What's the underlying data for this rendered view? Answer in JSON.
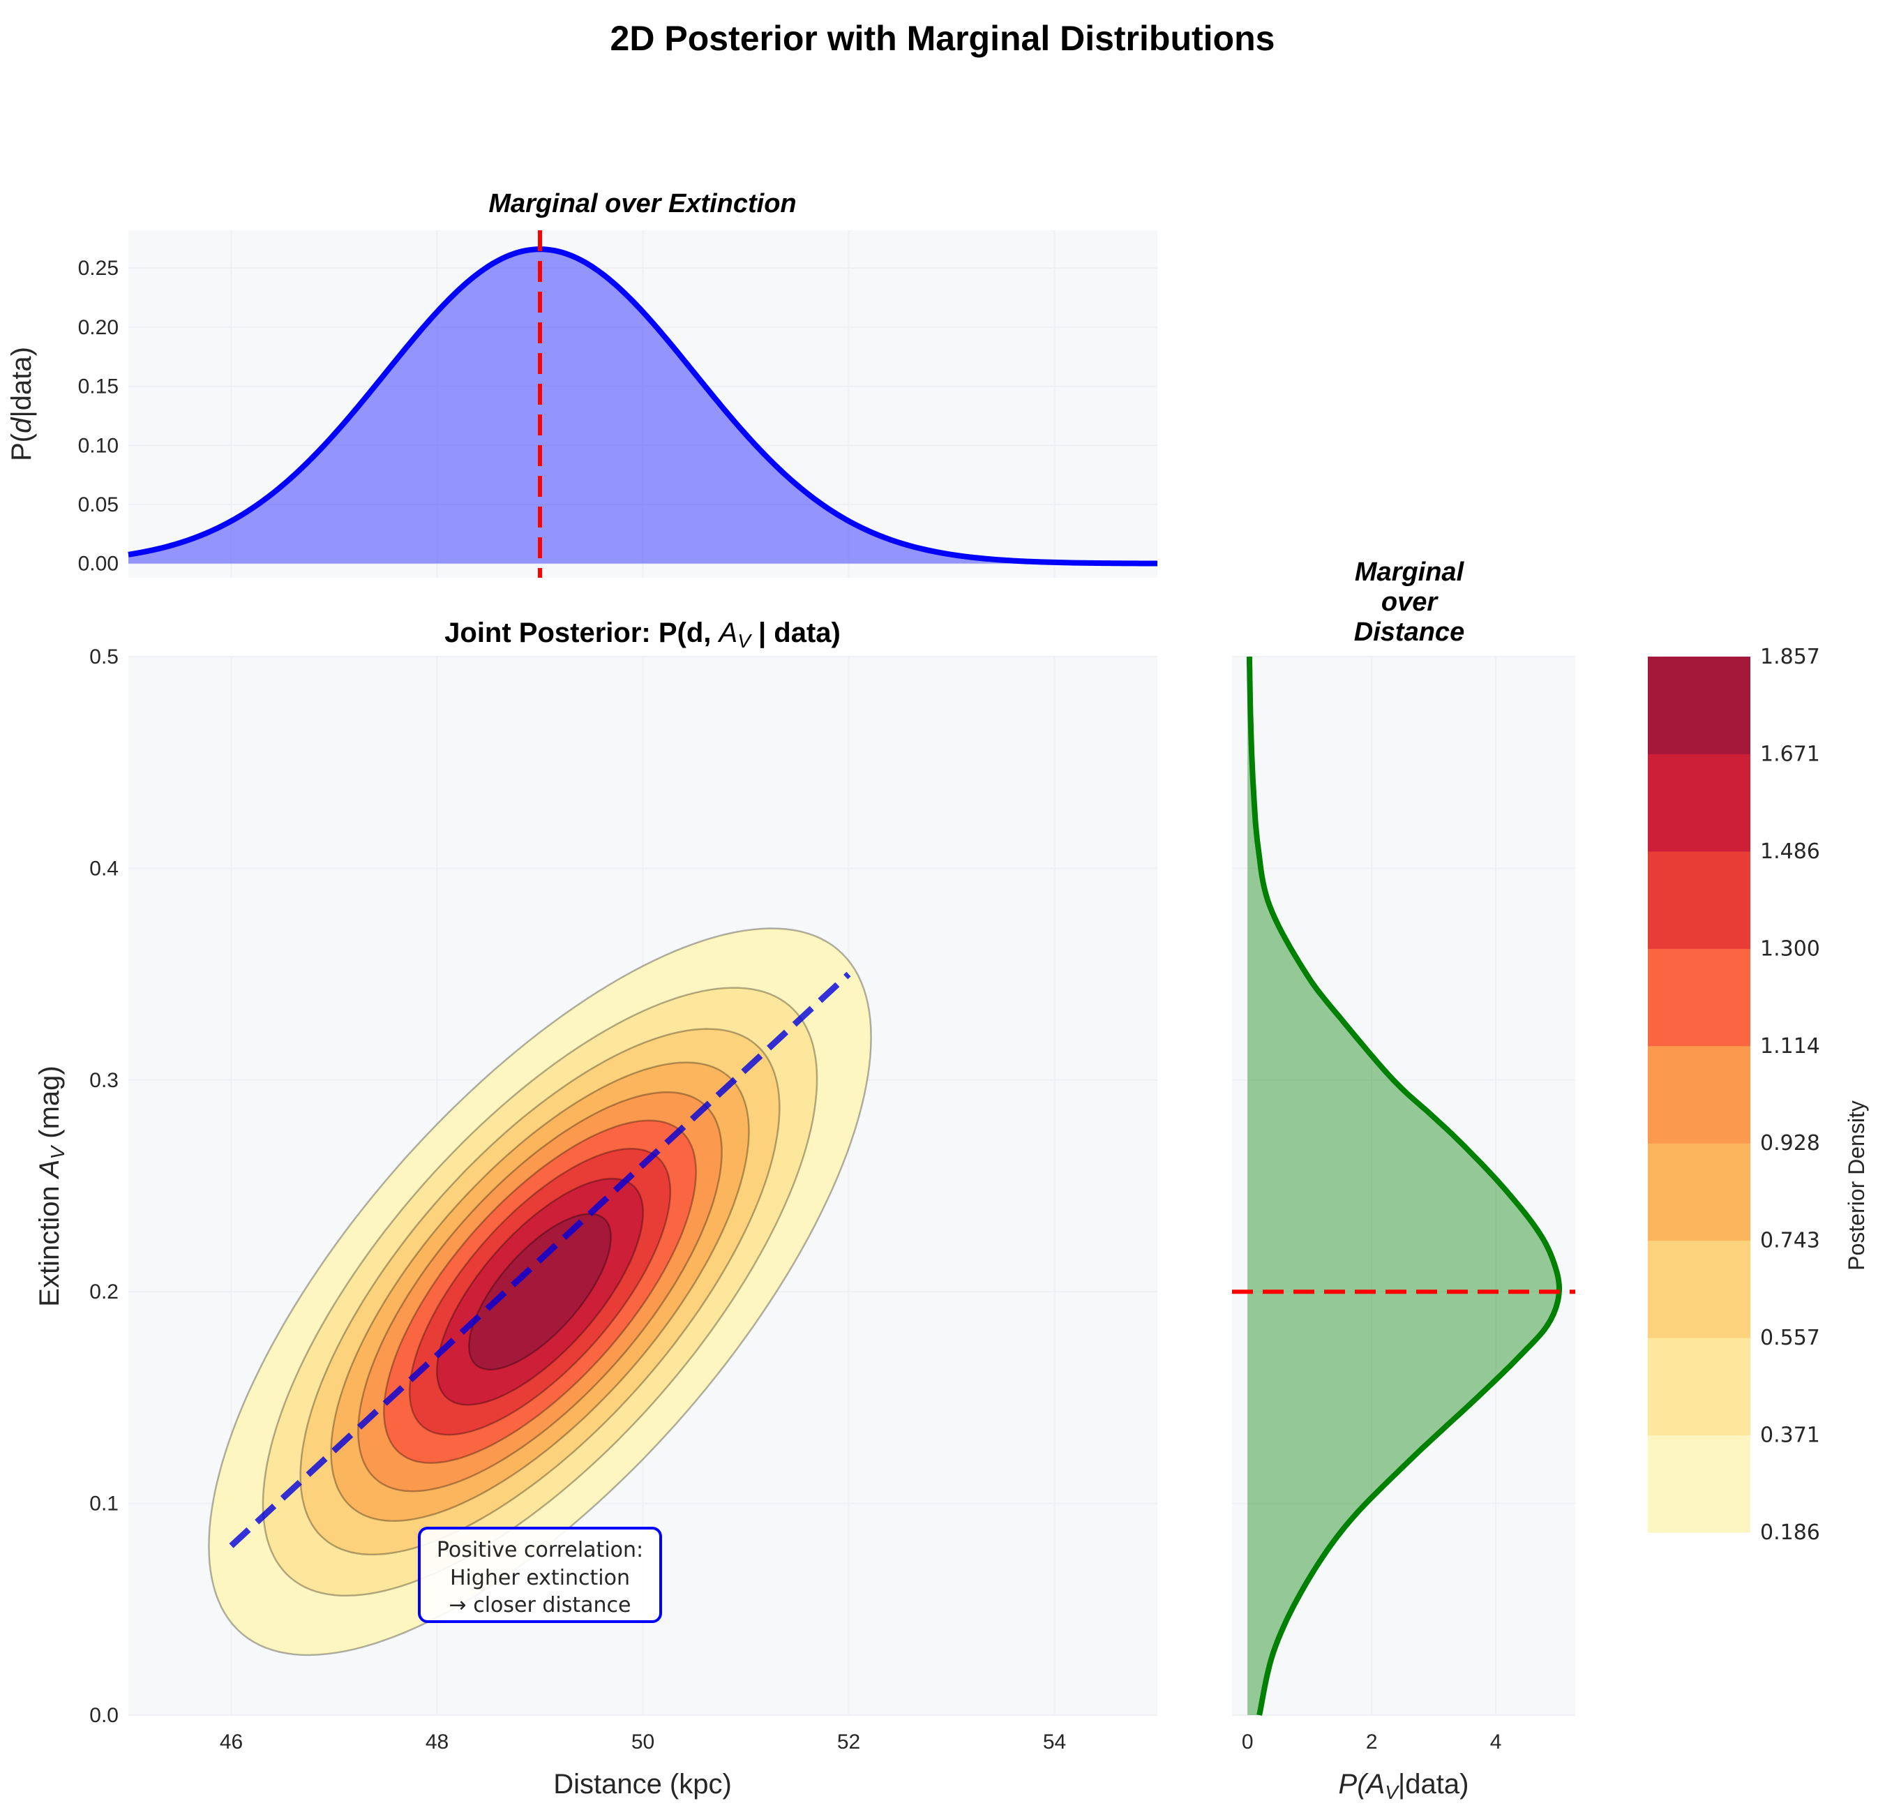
{
  "figure": {
    "suptitle": "2D Posterior with Marginal Distributions"
  },
  "chart_data": [
    {
      "panel": "top-marginal",
      "type": "area",
      "title": "Marginal over Extinction",
      "xlabel": "",
      "ylabel_prefix": "P(",
      "ylabel_var": "d",
      "ylabel_suffix": "|data)",
      "xlim": [
        45,
        55
      ],
      "ylim": [
        -0.012,
        0.282
      ],
      "yticks": [
        0.0,
        0.05,
        0.1,
        0.15,
        0.2,
        0.25
      ],
      "ytick_labels": [
        "0.00",
        "0.05",
        "0.10",
        "0.15",
        "0.20",
        "0.25"
      ],
      "curve": {
        "distribution": "normal",
        "mean": 49,
        "std": 1.5,
        "x_range": [
          45,
          55
        ],
        "color": "#0000ff",
        "fill_color": "#0000ff",
        "fill_alpha": 0.4
      },
      "vline": {
        "x": 49,
        "color": "#ff0000",
        "style": "dashed"
      },
      "grid": true
    },
    {
      "panel": "joint",
      "type": "heatmap",
      "subtype": "filled-contour",
      "title_prefix": "Joint Posterior: P(d, ",
      "title_var": "A",
      "title_sub": "V",
      "title_suffix": " | data)",
      "xlabel": "Distance (kpc)",
      "ylabel_prefix": "Extinction ",
      "ylabel_var": "A",
      "ylabel_sub": "V",
      "ylabel_suffix": " (mag)",
      "xlim": [
        45,
        55
      ],
      "ylim": [
        0.0,
        0.5
      ],
      "xticks": [
        46,
        48,
        50,
        52,
        54
      ],
      "xtick_labels": [
        "46",
        "48",
        "50",
        "52",
        "54"
      ],
      "yticks": [
        0.0,
        0.1,
        0.2,
        0.3,
        0.4,
        0.5
      ],
      "ytick_labels": [
        "0.0",
        "0.1",
        "0.2",
        "0.3",
        "0.4",
        "0.5"
      ],
      "distribution": {
        "type": "bivariate-normal",
        "mean_d": 49,
        "mean_av": 0.2,
        "std_d": 1.5,
        "std_av": 0.08,
        "rho": 0.7
      },
      "levels": [
        0.186,
        0.371,
        0.557,
        0.743,
        0.928,
        1.114,
        1.3,
        1.486,
        1.671,
        1.857
      ],
      "level_colors": [
        "#fff7bc",
        "#fee391",
        "#fed976",
        "#feb24c",
        "#fd8d3c",
        "#fc4e2a",
        "#e31a1c",
        "#bd0026",
        "#800026"
      ],
      "display_colors": [
        "#fef6c1",
        "#fde79d",
        "#fcd37c",
        "#fbb55d",
        "#fb994e",
        "#fa6641",
        "#e83c36",
        "#cd1f38",
        "#a4183a"
      ],
      "correlation_line": {
        "x": [
          46,
          52
        ],
        "y": [
          0.08,
          0.35
        ],
        "color": "#0000dd",
        "style": "dashed"
      },
      "annotation": {
        "lines": [
          "Positive correlation:",
          "Higher extinction",
          "→ closer distance"
        ],
        "x": 49,
        "y": 0.085,
        "border_color": "#0000ff"
      },
      "grid": true
    },
    {
      "panel": "right-marginal",
      "type": "area",
      "orientation": "horizontal",
      "title_lines": [
        "Marginal",
        "over",
        "Distance"
      ],
      "xlabel_prefix": "P(",
      "xlabel_var": "A",
      "xlabel_sub": "V",
      "xlabel_suffix": "|data)",
      "xlim": [
        -0.25,
        5.28
      ],
      "ylim": [
        0.0,
        0.5
      ],
      "xticks": [
        0,
        2,
        4
      ],
      "xtick_labels": [
        "0",
        "2",
        "4"
      ],
      "curve_points": [
        [
          0.0,
          0.19
        ],
        [
          0.03,
          0.42
        ],
        [
          0.06,
          0.9
        ],
        [
          0.09,
          1.6
        ],
        [
          0.12,
          2.6
        ],
        [
          0.15,
          3.7
        ],
        [
          0.17,
          4.4
        ],
        [
          0.185,
          4.85
        ],
        [
          0.2,
          5.02
        ],
        [
          0.215,
          4.92
        ],
        [
          0.23,
          4.65
        ],
        [
          0.25,
          4.1
        ],
        [
          0.27,
          3.45
        ],
        [
          0.283,
          2.98
        ],
        [
          0.3,
          2.35
        ],
        [
          0.327,
          1.56
        ],
        [
          0.35,
          0.95
        ],
        [
          0.382,
          0.36
        ],
        [
          0.41,
          0.17
        ],
        [
          0.44,
          0.09
        ],
        [
          0.47,
          0.05
        ],
        [
          0.5,
          0.03
        ]
      ],
      "curve_color": "#008000",
      "fill_color": "#008000",
      "fill_alpha": 0.4,
      "hline": {
        "y": 0.2,
        "color": "#ff0000",
        "style": "dashed"
      },
      "grid": true
    },
    {
      "panel": "colorbar",
      "type": "heatmap",
      "label": "Posterior Density",
      "ticks": [
        0.186,
        0.371,
        0.557,
        0.743,
        0.928,
        1.114,
        1.3,
        1.486,
        1.671,
        1.857
      ],
      "tick_labels": [
        "0.186",
        "0.371",
        "0.557",
        "0.743",
        "0.928",
        "1.114",
        "1.300",
        "1.486",
        "1.671",
        "1.857"
      ]
    }
  ]
}
